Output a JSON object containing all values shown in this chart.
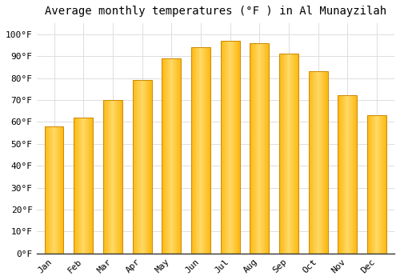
{
  "title": "Average monthly temperatures (°F ) in Al Munayzilah",
  "months": [
    "Jan",
    "Feb",
    "Mar",
    "Apr",
    "May",
    "Jun",
    "Jul",
    "Aug",
    "Sep",
    "Oct",
    "Nov",
    "Dec"
  ],
  "values": [
    58,
    62,
    70,
    79,
    89,
    94,
    97,
    96,
    91,
    83,
    72,
    63
  ],
  "bar_color_face": "#FDB913",
  "bar_color_edge": "#CC8800",
  "bar_color_light": "#FFD966",
  "background_color": "#FFFFFF",
  "grid_color": "#DDDDDD",
  "yticks": [
    0,
    10,
    20,
    30,
    40,
    50,
    60,
    70,
    80,
    90,
    100
  ],
  "ylim": [
    0,
    105
  ],
  "title_fontsize": 10,
  "tick_fontsize": 8,
  "font_family": "monospace"
}
